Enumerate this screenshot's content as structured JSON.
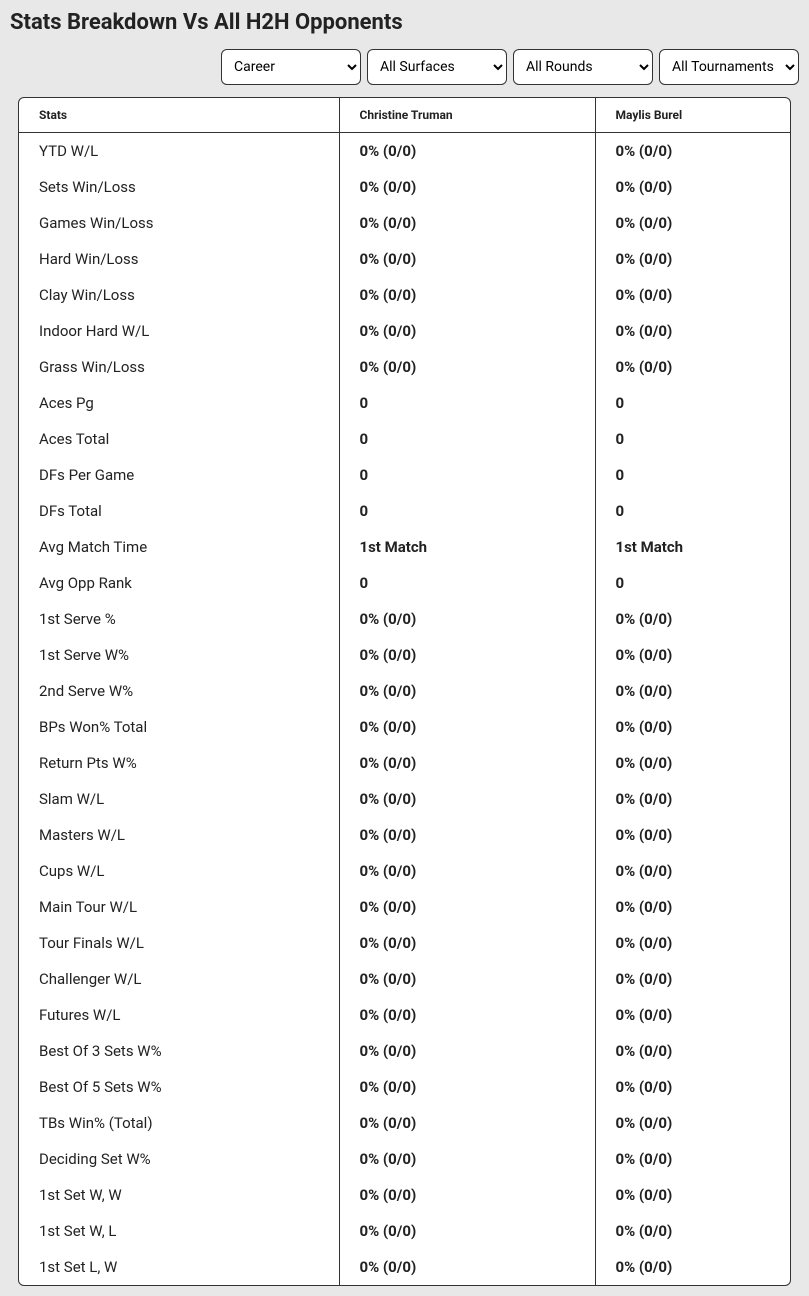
{
  "title": "Stats Breakdown Vs All H2H Opponents",
  "filters": {
    "career": {
      "selected": "Career"
    },
    "surfaces": {
      "selected": "All Surfaces"
    },
    "rounds": {
      "selected": "All Rounds"
    },
    "tournaments": {
      "selected": "All Tournaments"
    }
  },
  "headers": {
    "stats": "Stats",
    "player1": "Christine Truman",
    "player2": "Maylis Burel"
  },
  "rows": [
    {
      "label": "YTD W/L",
      "p1": "0% (0/0)",
      "p2": "0% (0/0)"
    },
    {
      "label": "Sets Win/Loss",
      "p1": "0% (0/0)",
      "p2": "0% (0/0)"
    },
    {
      "label": "Games Win/Loss",
      "p1": "0% (0/0)",
      "p2": "0% (0/0)"
    },
    {
      "label": "Hard Win/Loss",
      "p1": "0% (0/0)",
      "p2": "0% (0/0)"
    },
    {
      "label": "Clay Win/Loss",
      "p1": "0% (0/0)",
      "p2": "0% (0/0)"
    },
    {
      "label": "Indoor Hard W/L",
      "p1": "0% (0/0)",
      "p2": "0% (0/0)"
    },
    {
      "label": "Grass Win/Loss",
      "p1": "0% (0/0)",
      "p2": "0% (0/0)"
    },
    {
      "label": "Aces Pg",
      "p1": "0",
      "p2": "0"
    },
    {
      "label": "Aces Total",
      "p1": "0",
      "p2": "0"
    },
    {
      "label": "DFs Per Game",
      "p1": "0",
      "p2": "0"
    },
    {
      "label": "DFs Total",
      "p1": "0",
      "p2": "0"
    },
    {
      "label": "Avg Match Time",
      "p1": "1st Match",
      "p2": "1st Match"
    },
    {
      "label": "Avg Opp Rank",
      "p1": "0",
      "p2": "0"
    },
    {
      "label": "1st Serve %",
      "p1": "0% (0/0)",
      "p2": "0% (0/0)"
    },
    {
      "label": "1st Serve W%",
      "p1": "0% (0/0)",
      "p2": "0% (0/0)"
    },
    {
      "label": "2nd Serve W%",
      "p1": "0% (0/0)",
      "p2": "0% (0/0)"
    },
    {
      "label": "BPs Won% Total",
      "p1": "0% (0/0)",
      "p2": "0% (0/0)"
    },
    {
      "label": "Return Pts W%",
      "p1": "0% (0/0)",
      "p2": "0% (0/0)"
    },
    {
      "label": "Slam W/L",
      "p1": "0% (0/0)",
      "p2": "0% (0/0)"
    },
    {
      "label": "Masters W/L",
      "p1": "0% (0/0)",
      "p2": "0% (0/0)"
    },
    {
      "label": "Cups W/L",
      "p1": "0% (0/0)",
      "p2": "0% (0/0)"
    },
    {
      "label": "Main Tour W/L",
      "p1": "0% (0/0)",
      "p2": "0% (0/0)"
    },
    {
      "label": "Tour Finals W/L",
      "p1": "0% (0/0)",
      "p2": "0% (0/0)"
    },
    {
      "label": "Challenger W/L",
      "p1": "0% (0/0)",
      "p2": "0% (0/0)"
    },
    {
      "label": "Futures W/L",
      "p1": "0% (0/0)",
      "p2": "0% (0/0)"
    },
    {
      "label": "Best Of 3 Sets W%",
      "p1": "0% (0/0)",
      "p2": "0% (0/0)"
    },
    {
      "label": "Best Of 5 Sets W%",
      "p1": "0% (0/0)",
      "p2": "0% (0/0)"
    },
    {
      "label": "TBs Win% (Total)",
      "p1": "0% (0/0)",
      "p2": "0% (0/0)"
    },
    {
      "label": "Deciding Set W%",
      "p1": "0% (0/0)",
      "p2": "0% (0/0)"
    },
    {
      "label": "1st Set W, W",
      "p1": "0% (0/0)",
      "p2": "0% (0/0)"
    },
    {
      "label": "1st Set W, L",
      "p1": "0% (0/0)",
      "p2": "0% (0/0)"
    },
    {
      "label": "1st Set L, W",
      "p1": "0% (0/0)",
      "p2": "0% (0/0)"
    }
  ]
}
